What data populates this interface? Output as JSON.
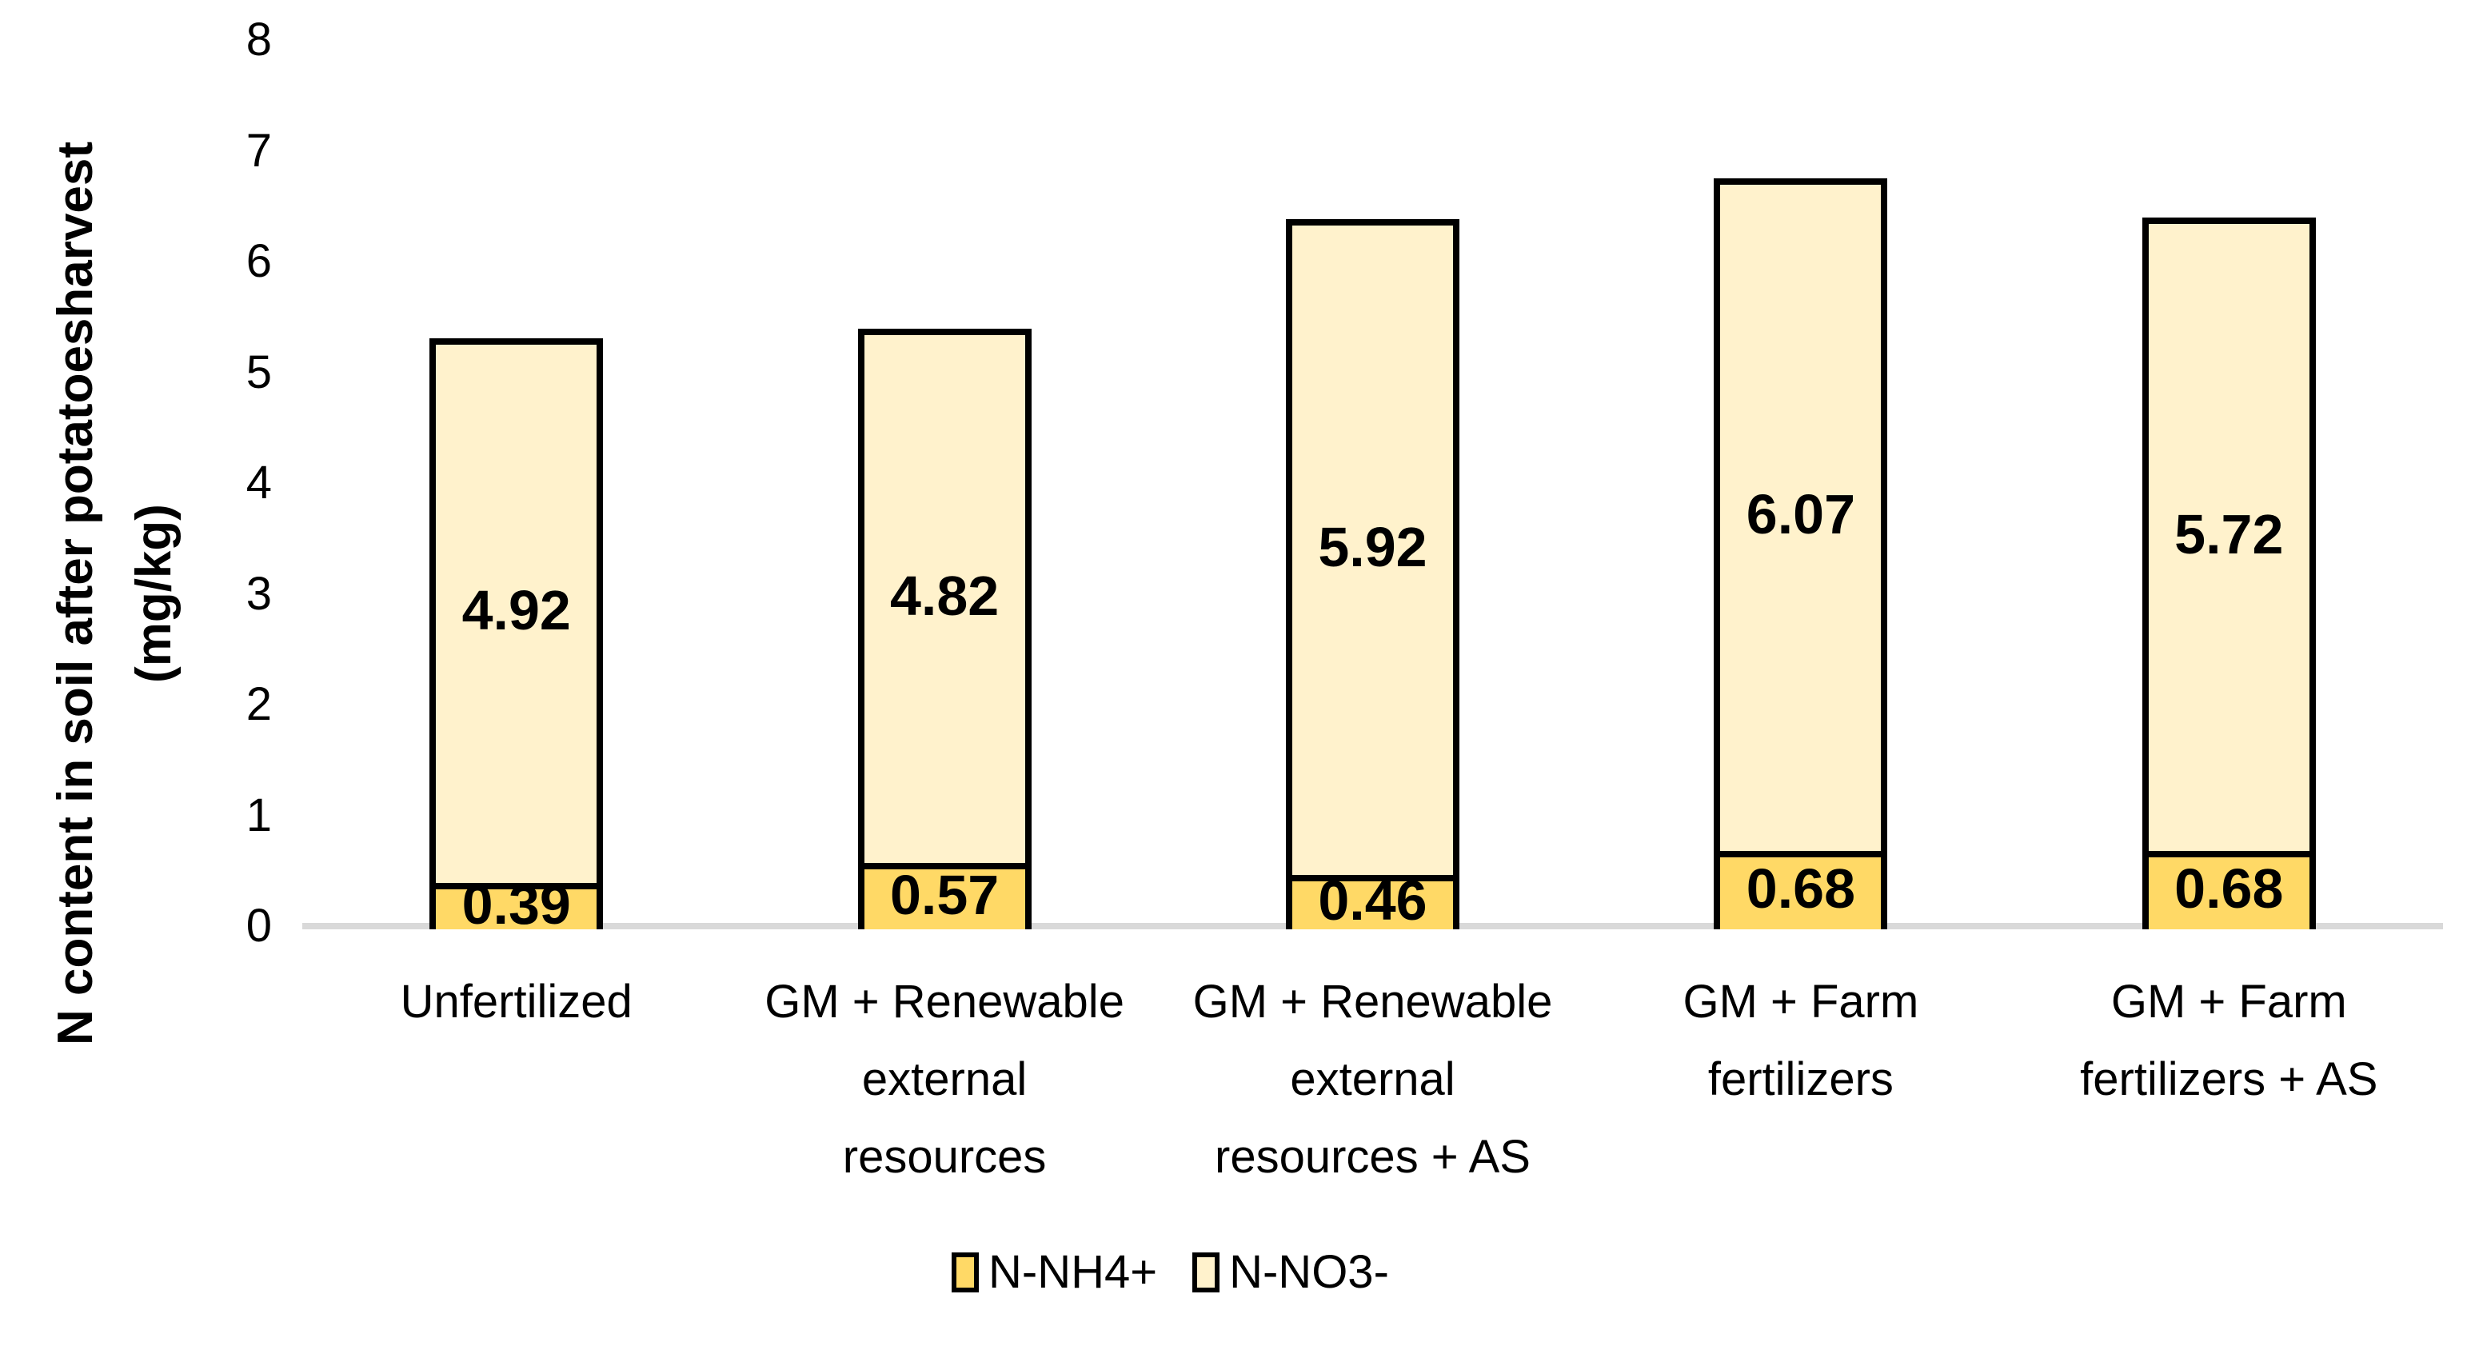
{
  "chart_data": {
    "type": "bar",
    "stacked": true,
    "ylabel_line1": "N content in soil after potatoesharvest",
    "ylabel_line2": "(mg/kg)",
    "ylim": [
      0,
      8
    ],
    "yticks": [
      "0",
      "1",
      "2",
      "3",
      "4",
      "5",
      "6",
      "7",
      "8"
    ],
    "grid": false,
    "legend_position": "bottom",
    "categories": [
      [
        "Unfertilized"
      ],
      [
        "GM + Renewable",
        "external",
        "resources"
      ],
      [
        "GM + Renewable",
        "external",
        "resources + AS"
      ],
      [
        "GM + Farm",
        "fertilizers"
      ],
      [
        "GM + Farm",
        "fertilizers + AS"
      ]
    ],
    "series": [
      {
        "name": "N-NH4+",
        "color": "#FFD966",
        "values": [
          0.39,
          0.57,
          0.46,
          0.68,
          0.68
        ],
        "labels": [
          "0.39",
          "0.57",
          "0.46",
          "0.68",
          "0.68"
        ]
      },
      {
        "name": "N-NO3-",
        "color": "#FFF2CC",
        "values": [
          4.92,
          4.82,
          5.92,
          6.07,
          5.72
        ],
        "labels": [
          "4.92",
          "4.82",
          "5.92",
          "6.07",
          "5.72"
        ]
      }
    ],
    "colors": {
      "bar_border": "#000000",
      "baseline": "#D9D9D9",
      "text": "#000000",
      "background": "#FFFFFF"
    }
  }
}
